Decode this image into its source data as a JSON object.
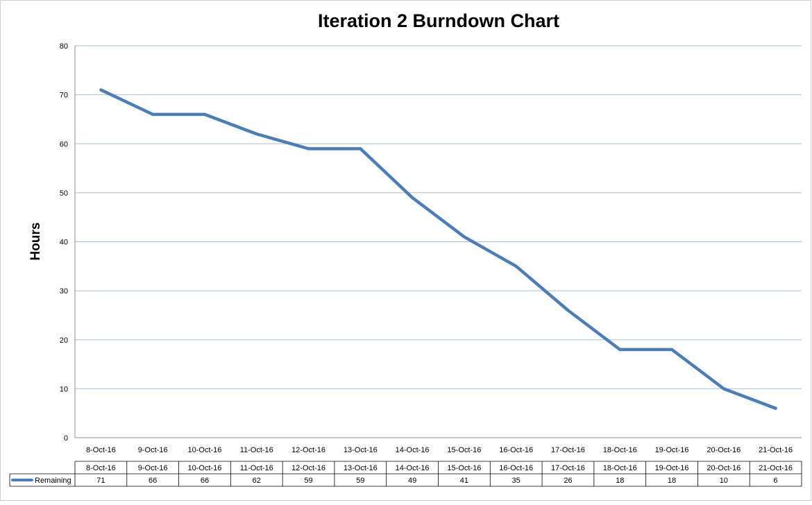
{
  "chart_data": {
    "type": "line",
    "title": "Iteration 2 Burndown Chart",
    "ylabel": "Hours",
    "xlabel": "",
    "ylim": [
      0,
      80
    ],
    "yticks": [
      0,
      10,
      20,
      30,
      40,
      50,
      60,
      70,
      80
    ],
    "grid": true,
    "categories": [
      "8-Oct-16",
      "9-Oct-16",
      "10-Oct-16",
      "11-Oct-16",
      "12-Oct-16",
      "13-Oct-16",
      "14-Oct-16",
      "15-Oct-16",
      "16-Oct-16",
      "17-Oct-16",
      "18-Oct-16",
      "19-Oct-16",
      "20-Oct-16",
      "21-Oct-16"
    ],
    "series": [
      {
        "name": "Remaining",
        "color": "#4a7ebb",
        "values": [
          71,
          66,
          66,
          62,
          59,
          59,
          49,
          41,
          35,
          26,
          18,
          18,
          10,
          6
        ]
      }
    ],
    "data_table": true
  }
}
